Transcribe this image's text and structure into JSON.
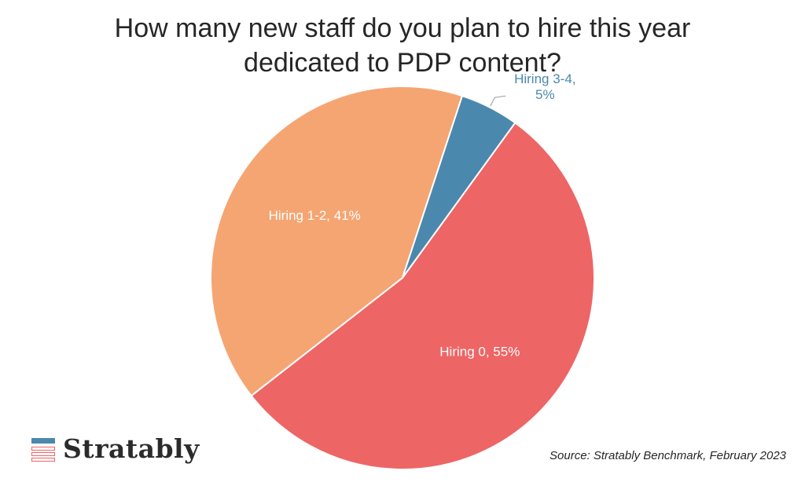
{
  "title_lines": [
    "How many new staff do you plan to hire this year",
    "dedicated to PDP content?"
  ],
  "chart_data": {
    "type": "pie",
    "title": "How many new staff do you plan to hire this year dedicated to PDP content?",
    "slices": [
      {
        "label": "Hiring 1-2, 41%",
        "category": "Hiring 1-2",
        "value": 41,
        "color": "#f5a572"
      },
      {
        "label": "Hiring 3-4, 5%",
        "category": "Hiring 3-4",
        "value": 5,
        "color": "#4b88ad"
      },
      {
        "label": "Hiring 0, 55%",
        "category": "Hiring 0",
        "value": 55,
        "color": "#ee6565"
      }
    ],
    "label_text_color": "#ffffff",
    "outside_label_color": "#4b88ad"
  },
  "logo": {
    "text": "Stratably"
  },
  "source": "Source: Stratably Benchmark, February 2023"
}
